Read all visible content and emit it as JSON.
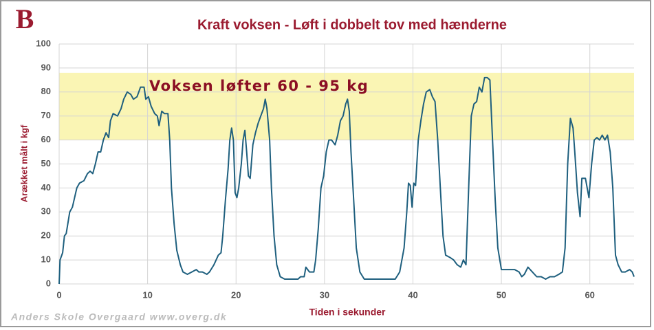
{
  "logo": "B",
  "footer": "Anders Skole Overgaard www.overg.dk",
  "chart_data": {
    "type": "line",
    "title": "Kraft voksen - Løft i dobbelt tov med hænderne",
    "xlabel": "Tiden i sekunder",
    "ylabel": "Arækket målt i kgf",
    "annotation": "Voksen løfter 60 - 95 kg",
    "band": [
      60,
      88
    ],
    "band_color": "#faf5b4",
    "color": "#1e5f7e",
    "grid": true,
    "xlim": [
      0,
      65
    ],
    "ylim": [
      0,
      100
    ],
    "xticks": [
      0,
      10,
      20,
      30,
      40,
      50,
      60
    ],
    "yticks": [
      0,
      10,
      20,
      30,
      40,
      50,
      60,
      70,
      80,
      90,
      100
    ],
    "x": [
      0,
      0.1,
      0.4,
      0.6,
      0.8,
      1.2,
      1.5,
      2,
      2.3,
      2.8,
      3.2,
      3.5,
      3.8,
      4.1,
      4.4,
      4.7,
      5,
      5.3,
      5.6,
      5.8,
      6.1,
      6.6,
      7,
      7.3,
      7.7,
      8.1,
      8.4,
      8.8,
      9,
      9.2,
      9.6,
      9.8,
      10.1,
      10.4,
      10.8,
      11.1,
      11.3,
      11.6,
      11.9,
      12.3,
      12.5,
      12.7,
      13,
      13.3,
      13.7,
      14,
      14.5,
      15,
      15.5,
      15.8,
      16.2,
      16.7,
      17,
      17.5,
      18,
      18.3,
      18.5,
      18.8,
      19.1,
      19.3,
      19.5,
      19.7,
      19.9,
      20.1,
      20.3,
      20.6,
      20.8,
      21,
      21.2,
      21.4,
      21.6,
      21.9,
      22.2,
      22.5,
      22.8,
      23.1,
      23.3,
      23.5,
      23.8,
      24,
      24.3,
      24.6,
      25,
      25.5,
      26,
      27,
      27.3,
      27.7,
      27.9,
      28.1,
      28.3,
      28.8,
      29,
      29.3,
      29.6,
      29.9,
      30.2,
      30.5,
      30.8,
      31.2,
      31.5,
      31.8,
      32.1,
      32.4,
      32.6,
      32.8,
      33,
      33.3,
      33.6,
      34,
      34.5,
      35,
      36,
      37,
      38,
      38.5,
      39,
      39.3,
      39.5,
      39.7,
      39.9,
      40.1,
      40.3,
      40.6,
      40.9,
      41.2,
      41.5,
      41.9,
      42.2,
      42.5,
      42.8,
      43.1,
      43.4,
      43.7,
      44.2,
      44.6,
      45,
      45.4,
      45.7,
      46,
      46.3,
      46.6,
      46.9,
      47.2,
      47.5,
      47.8,
      48.1,
      48.4,
      48.7,
      49,
      49.3,
      49.6,
      50,
      50.5,
      51,
      51.5,
      52,
      52.3,
      52.6,
      53,
      53.5,
      54,
      54.5,
      55,
      55.5,
      56,
      56.5,
      56.9,
      57.2,
      57.5,
      57.8,
      58.1,
      58.3,
      58.6,
      58.9,
      59.1,
      59.5,
      59.9,
      60.2,
      60.5,
      60.8,
      61.1,
      61.4,
      61.7,
      62,
      62.3,
      62.6,
      62.9,
      63.2,
      63.6,
      64,
      64.5,
      64.8,
      65
    ],
    "values": [
      0,
      10,
      13,
      20,
      21,
      30,
      32,
      40,
      42,
      43,
      46,
      47,
      46,
      50,
      55,
      55,
      60,
      63,
      61,
      68,
      71,
      70,
      73,
      77,
      80,
      79,
      77,
      78,
      80,
      82,
      82,
      77,
      78,
      74,
      71,
      70,
      66,
      72,
      71,
      71,
      60,
      40,
      25,
      14,
      8,
      5,
      4,
      5,
      6,
      5,
      5,
      4,
      5,
      8,
      12,
      13,
      20,
      35,
      48,
      60,
      65,
      60,
      38,
      36,
      40,
      50,
      60,
      64,
      55,
      45,
      44,
      58,
      63,
      67,
      70,
      73,
      77,
      73,
      60,
      40,
      20,
      8,
      3,
      2,
      2,
      2,
      3,
      3,
      7,
      6,
      5,
      5,
      10,
      23,
      40,
      45,
      55,
      60,
      60,
      58,
      62,
      68,
      70,
      75,
      77,
      72,
      55,
      35,
      15,
      5,
      2,
      2,
      2,
      2,
      2,
      5,
      15,
      30,
      42,
      41,
      32,
      42,
      41,
      60,
      68,
      75,
      80,
      81,
      78,
      76,
      60,
      40,
      20,
      12,
      11,
      10,
      8,
      7,
      10,
      8,
      40,
      70,
      75,
      76,
      82,
      80,
      86,
      86,
      85,
      60,
      35,
      15,
      6,
      6,
      6,
      6,
      5,
      3,
      4,
      7,
      5,
      3,
      3,
      2,
      3,
      3,
      4,
      5,
      15,
      50,
      69,
      65,
      55,
      38,
      28,
      44,
      44,
      36,
      50,
      60,
      61,
      60,
      62,
      60,
      62,
      55,
      40,
      12,
      8,
      5,
      5,
      6,
      5,
      3
    ]
  }
}
